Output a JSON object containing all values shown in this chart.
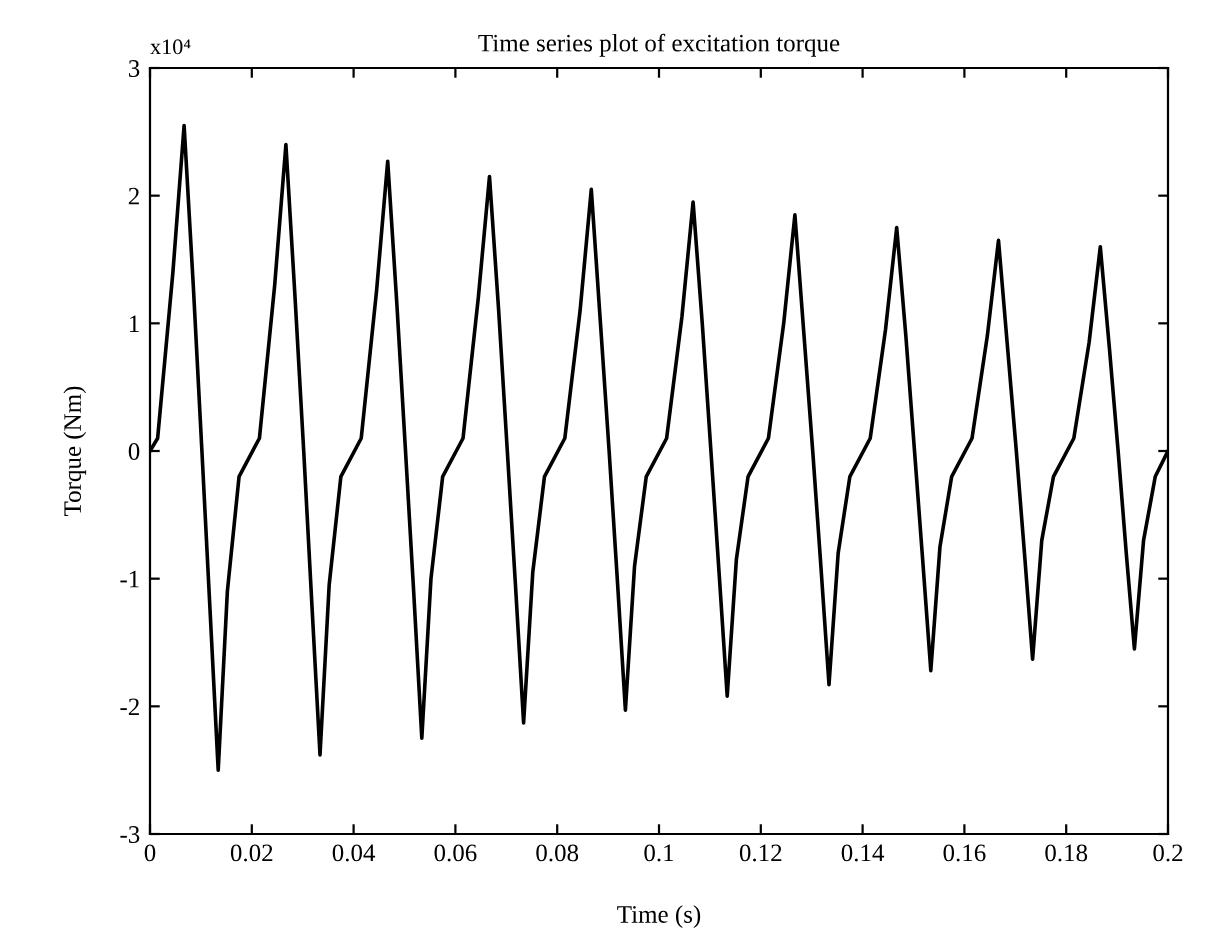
{
  "chart_data": {
    "type": "line",
    "title": "Time series plot of excitation torque",
    "xlabel": "Time (s)",
    "ylabel": "Torque (Nm)",
    "annotations": [
      "x10⁴"
    ],
    "xlim": [
      0,
      0.2
    ],
    "ylim": [
      -3,
      3
    ],
    "xticks": [
      0,
      0.02,
      0.04,
      0.06,
      0.08,
      0.1,
      0.12,
      0.14,
      0.16,
      0.18,
      0.2
    ],
    "yticks": [
      -3,
      -2,
      -1,
      0,
      1,
      2,
      3
    ],
    "marker": "none",
    "line_style": "solid",
    "series": [
      {
        "color": "#000000",
        "x": [
          0,
          0.0015,
          0.0045,
          0.0067,
          0.0085,
          0.0102,
          0.0118,
          0.0134,
          0.0152,
          0.0175,
          0.0215,
          0.0245,
          0.0267,
          0.0285,
          0.0302,
          0.0318,
          0.0334,
          0.0352,
          0.0375,
          0.0415,
          0.0445,
          0.0467,
          0.0485,
          0.0502,
          0.0518,
          0.0534,
          0.0552,
          0.0575,
          0.0615,
          0.0645,
          0.0667,
          0.0685,
          0.0702,
          0.0718,
          0.0734,
          0.0752,
          0.0775,
          0.0815,
          0.0845,
          0.0867,
          0.0885,
          0.0902,
          0.0918,
          0.0934,
          0.0952,
          0.0975,
          0.1015,
          0.1045,
          0.1067,
          0.1085,
          0.1102,
          0.1118,
          0.1134,
          0.1152,
          0.1175,
          0.1215,
          0.1245,
          0.1267,
          0.1285,
          0.1302,
          0.1318,
          0.1334,
          0.1352,
          0.1375,
          0.1415,
          0.1445,
          0.1467,
          0.1485,
          0.1502,
          0.1518,
          0.1534,
          0.1552,
          0.1575,
          0.1615,
          0.1645,
          0.1667,
          0.1685,
          0.1702,
          0.1718,
          0.1734,
          0.1752,
          0.1775,
          0.1815,
          0.1845,
          0.1867,
          0.1885,
          0.1902,
          0.1918,
          0.1934,
          0.1952,
          0.1975,
          0.2
        ],
        "values": [
          0,
          0.1,
          1.4,
          2.55,
          1.3,
          0,
          -1.25,
          -2.5,
          -1.1,
          -0.2,
          0.1,
          1.3,
          2.4,
          1.2,
          0,
          -1.2,
          -2.38,
          -1.05,
          -0.2,
          0.1,
          1.25,
          2.27,
          1.15,
          0,
          -1.1,
          -2.25,
          -1.0,
          -0.2,
          0.1,
          1.2,
          2.15,
          1.1,
          0,
          -1.05,
          -2.13,
          -0.95,
          -0.2,
          0.1,
          1.1,
          2.05,
          1.0,
          0,
          -1.0,
          -2.03,
          -0.9,
          -0.2,
          0.1,
          1.05,
          1.95,
          1.0,
          0,
          -0.95,
          -1.92,
          -0.85,
          -0.2,
          0.1,
          1.0,
          1.85,
          0.9,
          0,
          -0.9,
          -1.83,
          -0.8,
          -0.2,
          0.1,
          0.95,
          1.75,
          0.9,
          0,
          -0.85,
          -1.72,
          -0.75,
          -0.2,
          0.1,
          0.9,
          1.65,
          0.8,
          0,
          -0.8,
          -1.63,
          -0.7,
          -0.2,
          0.1,
          0.85,
          1.6,
          0.8,
          0,
          -0.8,
          -1.55,
          -0.7,
          -0.2,
          0
        ]
      }
    ]
  }
}
